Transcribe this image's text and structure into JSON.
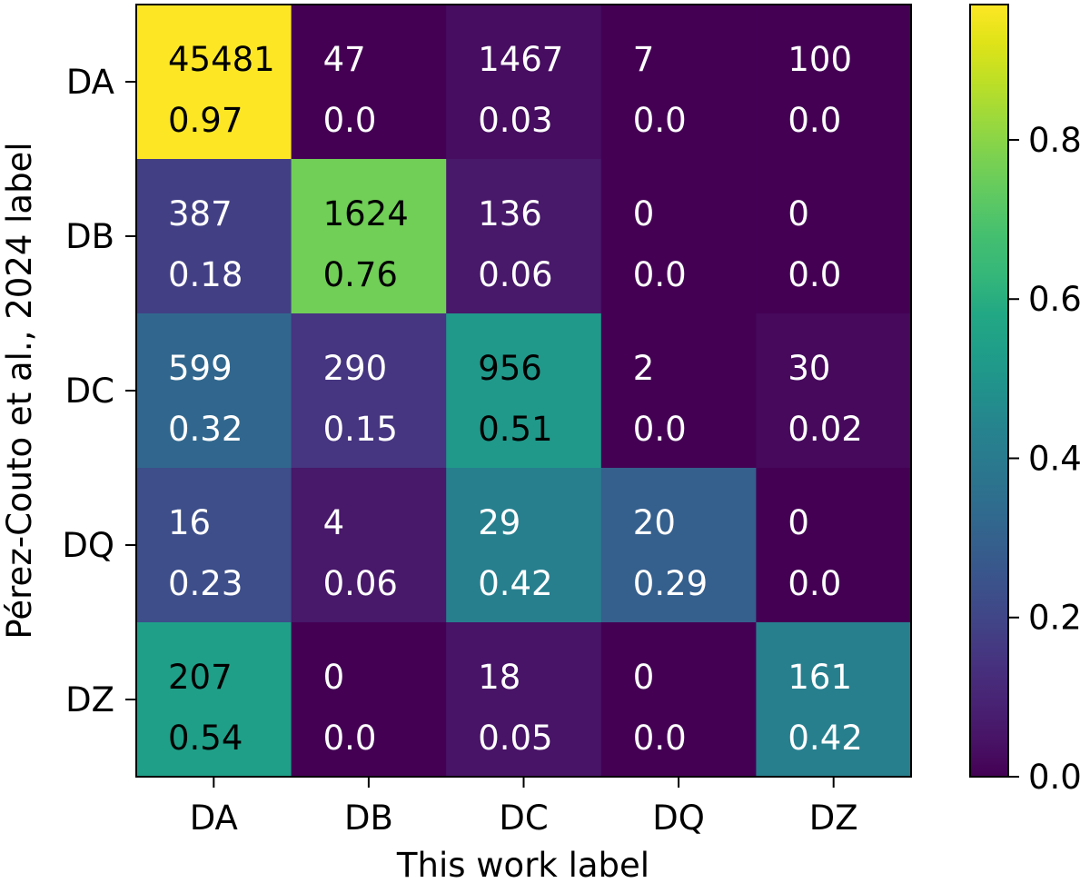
{
  "chart_data": {
    "type": "heatmap",
    "title": "",
    "xlabel": "This work label",
    "ylabel": "Pérez-Couto et al., 2024 label",
    "x_categories": [
      "DA",
      "DB",
      "DC",
      "DQ",
      "DZ"
    ],
    "y_categories": [
      "DA",
      "DB",
      "DC",
      "DQ",
      "DZ"
    ],
    "counts": [
      [
        "45481",
        "47",
        "1467",
        "7",
        "100"
      ],
      [
        "387",
        "1624",
        "136",
        "0",
        "0"
      ],
      [
        "599",
        "290",
        "956",
        "2",
        "30"
      ],
      [
        "16",
        "4",
        "29",
        "20",
        "0"
      ],
      [
        "207",
        "0",
        "18",
        "0",
        "161"
      ]
    ],
    "fractions": [
      [
        0.97,
        0.0,
        0.03,
        0.0,
        0.0
      ],
      [
        0.18,
        0.76,
        0.06,
        0.0,
        0.0
      ],
      [
        0.32,
        0.15,
        0.51,
        0.0,
        0.02
      ],
      [
        0.23,
        0.06,
        0.42,
        0.29,
        0.0
      ],
      [
        0.54,
        0.0,
        0.05,
        0.0,
        0.42
      ]
    ],
    "fraction_labels": [
      [
        "0.97",
        "0.0",
        "0.03",
        "0.0",
        "0.0"
      ],
      [
        "0.18",
        "0.76",
        "0.06",
        "0.0",
        "0.0"
      ],
      [
        "0.32",
        "0.15",
        "0.51",
        "0.0",
        "0.02"
      ],
      [
        "0.23",
        "0.06",
        "0.42",
        "0.29",
        "0.0"
      ],
      [
        "0.54",
        "0.0",
        "0.05",
        "0.0",
        "0.42"
      ]
    ],
    "colormap": "viridis",
    "colorbar": {
      "range": [
        0.0,
        0.97
      ],
      "ticks": [
        0.0,
        0.2,
        0.4,
        0.6,
        0.8
      ],
      "tick_labels": [
        "0.0",
        "0.2",
        "0.4",
        "0.6",
        "0.8"
      ]
    }
  }
}
